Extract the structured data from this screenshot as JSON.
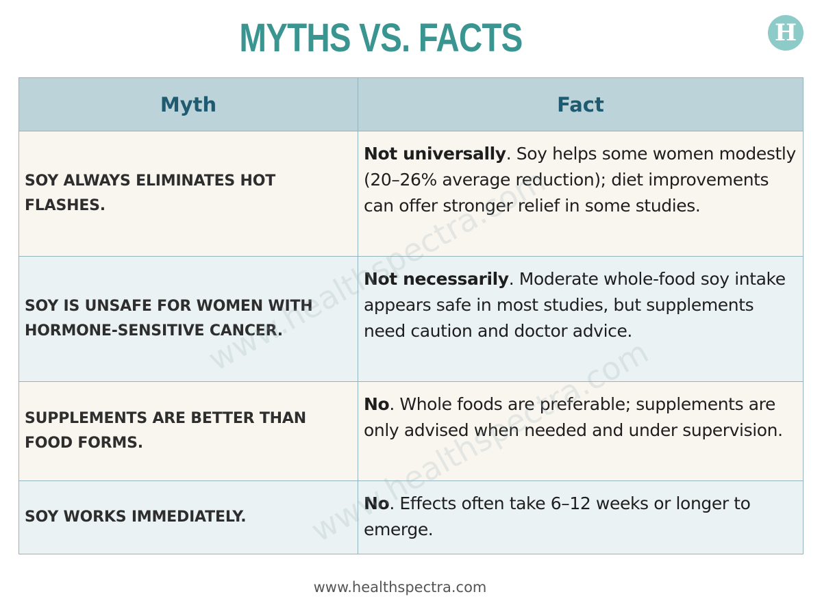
{
  "title": "MYTHS VS. FACTS",
  "logo_letter": "H",
  "table": {
    "headers": {
      "myth": "Myth",
      "fact": "Fact"
    },
    "rows": [
      {
        "myth": "SOY ALWAYS ELIMINATES HOT FLASHES.",
        "fact_lead": "Not universally",
        "fact_rest": ". Soy helps some women modestly (20–26% average reduction); diet improvements can offer stronger relief in some studies."
      },
      {
        "myth": "SOY IS UNSAFE FOR WOMEN WITH HORMONE-SENSITIVE CANCER.",
        "fact_lead": "Not necessarily",
        "fact_rest": ". Moderate whole-food soy intake appears safe in most studies, but supplements need caution and doctor advice."
      },
      {
        "myth": "SUPPLEMENTS ARE BETTER THAN FOOD FORMS.",
        "fact_lead": "No",
        "fact_rest": ". Whole foods are preferable; supplements are only advised when needed and under supervision."
      },
      {
        "myth": "SOY WORKS IMMEDIATELY.",
        "fact_lead": "No",
        "fact_rest": ". Effects often take 6–12 weeks or longer to emerge."
      }
    ]
  },
  "watermark_text": "www.healthspectra.com",
  "footer_url": "www.healthspectra.com",
  "colors": {
    "title": "#3a9590",
    "header_bg": "#bcd3d9",
    "header_text": "#1e5a70",
    "row_alt_1": "#f9f6ef",
    "row_alt_2": "#ebf2f3",
    "logo_bg": "#8ccbc7"
  }
}
